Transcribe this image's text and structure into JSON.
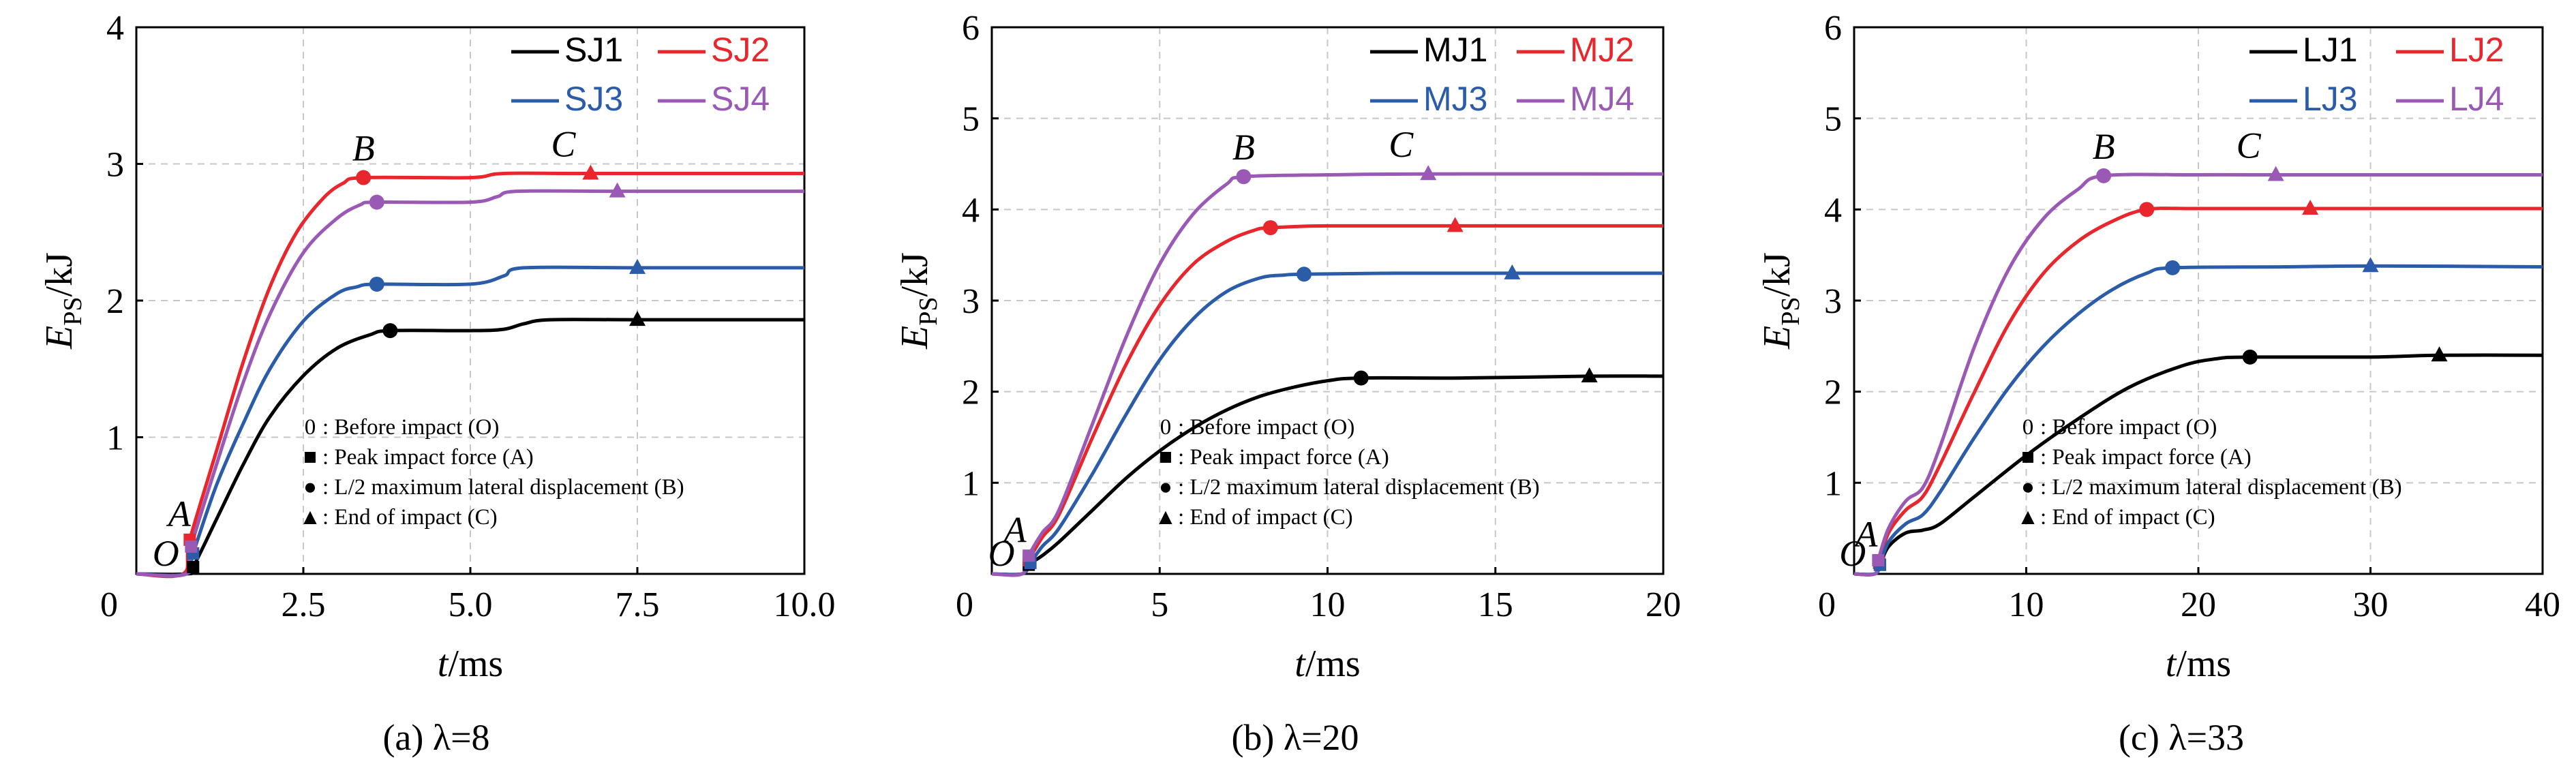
{
  "chart_data": [
    {
      "type": "line",
      "caption": "(a) λ=8",
      "xlabel": "t/ms",
      "ylabel": "EPS/kJ",
      "xlim": [
        0,
        10
      ],
      "ylim": [
        0,
        4
      ],
      "xticks": [
        "0",
        "2.5",
        "5.0",
        "7.5",
        "10.0"
      ],
      "xtick_values": [
        0,
        2.5,
        5,
        7.5,
        10
      ],
      "yticks": [
        "1",
        "2",
        "3",
        "4"
      ],
      "ytick_values": [
        1,
        2,
        3,
        4
      ],
      "grid": true,
      "legend_position": "top-right",
      "point_labels": {
        "O": "O",
        "A": "A",
        "B": "B",
        "C": "C"
      },
      "series": [
        {
          "name": "SJ1",
          "color": "#000000",
          "x": [
            0,
            0.75,
            0.85,
            1.2,
            1.6,
            2.0,
            2.5,
            3.0,
            3.5,
            3.8,
            5.0,
            5.5,
            5.8,
            6.2,
            7.5,
            10.0
          ],
          "y": [
            0,
            0,
            0.05,
            0.4,
            0.8,
            1.15,
            1.45,
            1.65,
            1.75,
            1.78,
            1.78,
            1.79,
            1.83,
            1.86,
            1.86,
            1.86
          ],
          "markers": {
            "A": [
              0.85,
              0.05
            ],
            "B": [
              3.8,
              1.78
            ],
            "C": [
              7.5,
              1.86
            ]
          }
        },
        {
          "name": "SJ2",
          "color": "#e8262b",
          "x": [
            0,
            0.7,
            0.8,
            1.2,
            1.6,
            2.0,
            2.4,
            2.8,
            3.1,
            3.4,
            5.0,
            5.5,
            6.8,
            10.0
          ],
          "y": [
            0,
            0,
            0.25,
            0.9,
            1.55,
            2.1,
            2.5,
            2.75,
            2.86,
            2.9,
            2.9,
            2.93,
            2.93,
            2.93
          ],
          "markers": {
            "A": [
              0.8,
              0.25
            ],
            "B": [
              3.4,
              2.9
            ],
            "C": [
              6.8,
              2.93
            ]
          }
        },
        {
          "name": "SJ3",
          "color": "#2a5caa",
          "x": [
            0,
            0.75,
            0.85,
            1.2,
            1.6,
            2.0,
            2.5,
            3.0,
            3.3,
            3.6,
            5.0,
            5.5,
            5.8,
            7.5,
            10.0
          ],
          "y": [
            0,
            0,
            0.15,
            0.65,
            1.1,
            1.5,
            1.85,
            2.05,
            2.1,
            2.12,
            2.12,
            2.18,
            2.24,
            2.24,
            2.24
          ],
          "markers": {
            "A": [
              0.85,
              0.15
            ],
            "B": [
              3.6,
              2.12
            ],
            "C": [
              7.5,
              2.24
            ]
          }
        },
        {
          "name": "SJ4",
          "color": "#9b59b6",
          "x": [
            0,
            0.75,
            0.82,
            1.2,
            1.6,
            2.0,
            2.5,
            3.0,
            3.35,
            3.6,
            5.0,
            5.4,
            5.7,
            7.2,
            10.0
          ],
          "y": [
            0,
            0,
            0.2,
            0.8,
            1.4,
            1.9,
            2.35,
            2.6,
            2.7,
            2.72,
            2.72,
            2.76,
            2.8,
            2.8,
            2.8
          ],
          "markers": {
            "A": [
              0.82,
              0.2
            ],
            "B": [
              3.6,
              2.72
            ],
            "C": [
              7.2,
              2.8
            ]
          }
        }
      ],
      "notes": [
        {
          "symbol": "0",
          "text": ": Before impact (O)"
        },
        {
          "symbol": "■",
          "text": ": Peak impact force (A)"
        },
        {
          "symbol": "●",
          "text": ": L/2 maximum lateral displacement (B)"
        },
        {
          "symbol": "▲",
          "text": ": End of impact (C)"
        }
      ]
    },
    {
      "type": "line",
      "caption": "(b) λ=20",
      "xlabel": "t/ms",
      "ylabel": "EPS/kJ",
      "xlim": [
        0,
        20
      ],
      "ylim": [
        0,
        6
      ],
      "xticks": [
        "0",
        "5",
        "10",
        "15",
        "20"
      ],
      "xtick_values": [
        0,
        5,
        10,
        15,
        20
      ],
      "yticks": [
        "1",
        "2",
        "3",
        "4",
        "5",
        "6"
      ],
      "ytick_values": [
        1,
        2,
        3,
        4,
        5,
        6
      ],
      "grid": true,
      "legend_position": "top-right",
      "point_labels": {
        "O": "O",
        "A": "A",
        "B": "B",
        "C": "C"
      },
      "series": [
        {
          "name": "MJ1",
          "color": "#000000",
          "x": [
            0,
            0.9,
            1.1,
            1.5,
            2.0,
            3.0,
            4.0,
            5.0,
            6.0,
            7.0,
            8.0,
            9.0,
            10.0,
            11.0,
            14.0,
            17.8,
            20.0
          ],
          "y": [
            0,
            0,
            0.1,
            0.2,
            0.35,
            0.7,
            1.05,
            1.35,
            1.6,
            1.8,
            1.95,
            2.05,
            2.12,
            2.15,
            2.15,
            2.17,
            2.17
          ],
          "markers": {
            "A": [
              1.1,
              0.1
            ],
            "B": [
              11.0,
              2.15
            ],
            "C": [
              17.8,
              2.17
            ]
          }
        },
        {
          "name": "MJ2",
          "color": "#e8262b",
          "x": [
            0,
            0.9,
            1.1,
            1.5,
            2.0,
            3.0,
            4.0,
            5.0,
            6.0,
            7.0,
            7.8,
            8.3,
            10.0,
            13.8,
            20.0
          ],
          "y": [
            0,
            0,
            0.15,
            0.4,
            0.65,
            1.5,
            2.3,
            2.95,
            3.4,
            3.65,
            3.77,
            3.8,
            3.82,
            3.82,
            3.82
          ],
          "markers": {
            "A": [
              1.1,
              0.15
            ],
            "B": [
              8.3,
              3.8
            ],
            "C": [
              13.8,
              3.82
            ]
          }
        },
        {
          "name": "MJ3",
          "color": "#2a5caa",
          "x": [
            0,
            0.9,
            1.15,
            1.5,
            2.0,
            3.0,
            4.0,
            5.0,
            6.0,
            7.0,
            8.0,
            8.7,
            9.3,
            12.0,
            15.5,
            20.0
          ],
          "y": [
            0,
            0,
            0.12,
            0.3,
            0.5,
            1.1,
            1.75,
            2.35,
            2.8,
            3.1,
            3.25,
            3.28,
            3.29,
            3.3,
            3.3,
            3.3
          ],
          "markers": {
            "A": [
              1.15,
              0.12
            ],
            "B": [
              9.3,
              3.29
            ],
            "C": [
              15.5,
              3.3
            ]
          }
        },
        {
          "name": "MJ4",
          "color": "#9b59b6",
          "x": [
            0,
            0.9,
            1.1,
            1.5,
            2.0,
            3.0,
            4.0,
            5.0,
            6.0,
            7.0,
            7.5,
            10.0,
            13.0,
            20.0
          ],
          "y": [
            0,
            0,
            0.2,
            0.45,
            0.7,
            1.65,
            2.6,
            3.4,
            3.95,
            4.28,
            4.36,
            4.38,
            4.39,
            4.39
          ],
          "markers": {
            "A": [
              1.1,
              0.2
            ],
            "B": [
              7.5,
              4.36
            ],
            "C": [
              13.0,
              4.39
            ]
          }
        }
      ],
      "notes": [
        {
          "symbol": "0",
          "text": ": Before impact (O)"
        },
        {
          "symbol": "■",
          "text": ": Peak impact force (A)"
        },
        {
          "symbol": "●",
          "text": ": L/2 maximum lateral displacement (B)"
        },
        {
          "symbol": "▲",
          "text": ": End of impact (C)"
        }
      ]
    },
    {
      "type": "line",
      "caption": "(c) λ=33",
      "xlabel": "t/ms",
      "ylabel": "EPS/kJ",
      "xlim": [
        0,
        40
      ],
      "ylim": [
        0,
        6
      ],
      "xticks": [
        "0",
        "10",
        "20",
        "30",
        "40"
      ],
      "xtick_values": [
        0,
        10,
        20,
        30,
        40
      ],
      "yticks": [
        "1",
        "2",
        "3",
        "4",
        "5",
        "6"
      ],
      "ytick_values": [
        1,
        2,
        3,
        4,
        5,
        6
      ],
      "grid": true,
      "legend_position": "top-right",
      "point_labels": {
        "O": "O",
        "A": "A",
        "B": "B",
        "C": "C"
      },
      "series": [
        {
          "name": "LJ1",
          "color": "#000000",
          "x": [
            0,
            1.2,
            1.5,
            2.0,
            3.0,
            4.0,
            5.0,
            7.0,
            10.0,
            13.0,
            16.0,
            19.0,
            21.0,
            23.0,
            30.0,
            34.0,
            40.0
          ],
          "y": [
            0,
            0,
            0.1,
            0.3,
            0.45,
            0.48,
            0.55,
            0.85,
            1.3,
            1.7,
            2.05,
            2.28,
            2.36,
            2.38,
            2.38,
            2.4,
            2.4
          ],
          "markers": {
            "A": [
              1.5,
              0.1
            ],
            "B": [
              23.0,
              2.38
            ],
            "C": [
              34.0,
              2.4
            ]
          }
        },
        {
          "name": "LJ2",
          "color": "#e8262b",
          "x": [
            0,
            1.2,
            1.45,
            2.0,
            3.0,
            4.0,
            5.0,
            7.0,
            9.0,
            11.0,
            13.0,
            15.0,
            17.0,
            20.0,
            26.5,
            40.0
          ],
          "y": [
            0,
            0,
            0.12,
            0.45,
            0.7,
            0.85,
            1.2,
            2.0,
            2.75,
            3.3,
            3.65,
            3.87,
            4.0,
            4.01,
            4.01,
            4.01
          ],
          "markers": {
            "A": [
              1.45,
              0.12
            ],
            "B": [
              17.0,
              4.0
            ],
            "C": [
              26.5,
              4.01
            ]
          }
        },
        {
          "name": "LJ3",
          "color": "#2a5caa",
          "x": [
            0,
            1.2,
            1.5,
            2.0,
            3.0,
            4.0,
            5.0,
            7.0,
            9.0,
            11.0,
            13.0,
            15.0,
            17.0,
            18.5,
            25.0,
            30.0,
            40.0
          ],
          "y": [
            0,
            0,
            0.1,
            0.35,
            0.55,
            0.65,
            0.9,
            1.5,
            2.05,
            2.5,
            2.85,
            3.12,
            3.3,
            3.36,
            3.37,
            3.38,
            3.37
          ],
          "markers": {
            "A": [
              1.5,
              0.1
            ],
            "B": [
              18.5,
              3.36
            ],
            "C": [
              30.0,
              3.38
            ]
          }
        },
        {
          "name": "LJ4",
          "color": "#9b59b6",
          "x": [
            0,
            1.2,
            1.4,
            2.0,
            3.0,
            4.0,
            5.0,
            7.0,
            9.0,
            11.0,
            13.0,
            14.5,
            20.0,
            24.5,
            40.0
          ],
          "y": [
            0,
            0,
            0.15,
            0.5,
            0.8,
            0.95,
            1.4,
            2.5,
            3.35,
            3.9,
            4.22,
            4.37,
            4.38,
            4.38,
            4.38
          ],
          "markers": {
            "A": [
              1.4,
              0.15
            ],
            "B": [
              14.5,
              4.37
            ],
            "C": [
              24.5,
              4.38
            ]
          }
        }
      ],
      "notes": [
        {
          "symbol": "0",
          "text": ": Before impact (O)"
        },
        {
          "symbol": "■",
          "text": ": Peak impact force (A)"
        },
        {
          "symbol": "●",
          "text": ": L/2 maximum lateral displacement (B)"
        },
        {
          "symbol": "▲",
          "text": ": End of impact (C)"
        }
      ]
    }
  ]
}
